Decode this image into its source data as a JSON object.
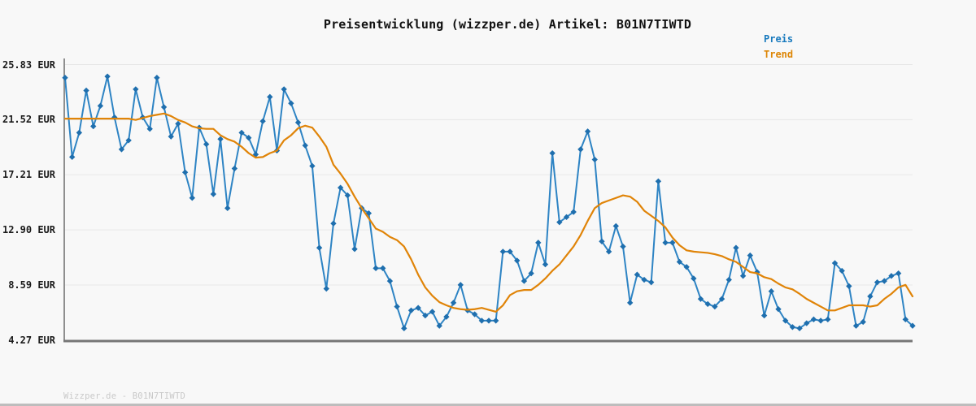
{
  "title": "Preisentwicklung (wizzper.de) Artikel: B01N7TIWTD",
  "legend": {
    "price_label": "Preis",
    "trend_label": "Trend"
  },
  "footer": "Wizzper.de - B01N7TIWTD",
  "colors": {
    "background": "#f8f8f8",
    "title_text": "#111111",
    "tick_text": "#1a1a1a",
    "price_line": "#2e84c4",
    "price_marker": "#1f6fae",
    "trend_line": "#e08408",
    "legend_price_text": "#187abe",
    "legend_trend_text": "#dd8606",
    "grid_line": "#e7e7e7",
    "spine_left": "#8f8f8f",
    "spine_bottom": "#767676",
    "watermark_text": "#c9c9c9",
    "bottom_strip": "#bdbdbd"
  },
  "chart_data": {
    "type": "line",
    "title": "Preisentwicklung (wizzper.de) Artikel: B01N7TIWTD",
    "xlabel": "",
    "ylabel": "",
    "x_axis": {
      "labels_visible": false,
      "points": 121
    },
    "ylim": [
      4.27,
      25.83
    ],
    "grid": true,
    "legend_position": "top-right",
    "y_ticks": [
      {
        "value": 25.83,
        "label": "25.83 EUR"
      },
      {
        "value": 21.52,
        "label": "21.52 EUR"
      },
      {
        "value": 17.21,
        "label": "17.21 EUR"
      },
      {
        "value": 12.9,
        "label": "12.90 EUR"
      },
      {
        "value": 8.59,
        "label": "8.59 EUR"
      },
      {
        "value": 4.27,
        "label": "4.27 EUR"
      }
    ],
    "series": [
      {
        "name": "Preis",
        "unit": "EUR",
        "marker": "diamond",
        "values": [
          24.8,
          18.6,
          20.5,
          23.8,
          21.0,
          22.6,
          24.9,
          21.7,
          19.2,
          19.9,
          23.9,
          21.7,
          20.8,
          24.8,
          22.5,
          20.2,
          21.2,
          17.4,
          15.4,
          20.9,
          19.6,
          15.7,
          20.0,
          14.6,
          17.7,
          20.5,
          20.1,
          18.8,
          21.4,
          23.3,
          19.1,
          23.9,
          22.8,
          21.3,
          19.5,
          17.9,
          11.5,
          8.3,
          13.4,
          16.2,
          15.6,
          11.4,
          14.6,
          14.2,
          9.9,
          9.9,
          8.9,
          6.9,
          5.2,
          6.6,
          6.8,
          6.2,
          6.5,
          5.4,
          6.1,
          7.2,
          8.6,
          6.6,
          6.3,
          5.8,
          5.8,
          5.8,
          11.2,
          11.2,
          10.5,
          8.9,
          9.5,
          11.9,
          10.2,
          18.9,
          13.5,
          13.9,
          14.3,
          19.2,
          20.6,
          18.4,
          12.0,
          11.2,
          13.2,
          11.6,
          7.2,
          9.4,
          9.0,
          8.8,
          16.7,
          11.9,
          11.9,
          10.4,
          10.0,
          9.1,
          7.5,
          7.1,
          6.9,
          7.5,
          9.0,
          11.5,
          9.3,
          10.9,
          9.6,
          6.2,
          8.1,
          6.7,
          5.8,
          5.3,
          5.2,
          5.6,
          5.9,
          5.8,
          5.9,
          10.3,
          9.7,
          8.5,
          5.4,
          5.7,
          7.7,
          8.8,
          8.9,
          9.3,
          9.5,
          5.9,
          5.4
        ]
      },
      {
        "name": "Trend",
        "unit": "EUR",
        "marker": "none",
        "values": [
          21.6,
          21.6,
          21.6,
          21.6,
          21.6,
          21.6,
          21.6,
          21.6,
          21.6,
          21.6,
          21.5,
          21.65,
          21.8,
          21.9,
          22.0,
          21.8,
          21.5,
          21.3,
          21.0,
          20.85,
          20.8,
          20.8,
          20.3,
          20.0,
          19.8,
          19.4,
          18.9,
          18.55,
          18.6,
          18.9,
          19.1,
          19.9,
          20.3,
          20.85,
          21.05,
          20.9,
          20.2,
          19.4,
          18.0,
          17.3,
          16.5,
          15.5,
          14.6,
          13.8,
          13.0,
          12.75,
          12.35,
          12.1,
          11.6,
          10.6,
          9.4,
          8.4,
          7.75,
          7.25,
          7.0,
          6.8,
          6.7,
          6.65,
          6.7,
          6.8,
          6.65,
          6.5,
          7.0,
          7.8,
          8.1,
          8.2,
          8.2,
          8.6,
          9.1,
          9.7,
          10.2,
          10.9,
          11.6,
          12.5,
          13.6,
          14.6,
          15.0,
          15.2,
          15.4,
          15.6,
          15.5,
          15.1,
          14.4,
          14.0,
          13.6,
          13.1,
          12.3,
          11.7,
          11.3,
          11.2,
          11.15,
          11.1,
          11.0,
          10.85,
          10.6,
          10.4,
          10.0,
          9.6,
          9.5,
          9.2,
          9.05,
          8.7,
          8.4,
          8.25,
          7.9,
          7.5,
          7.2,
          6.9,
          6.6,
          6.6,
          6.8,
          7.0,
          7.0,
          7.0,
          6.9,
          7.0,
          7.5,
          7.9,
          8.4,
          8.6,
          7.7
        ]
      }
    ]
  }
}
